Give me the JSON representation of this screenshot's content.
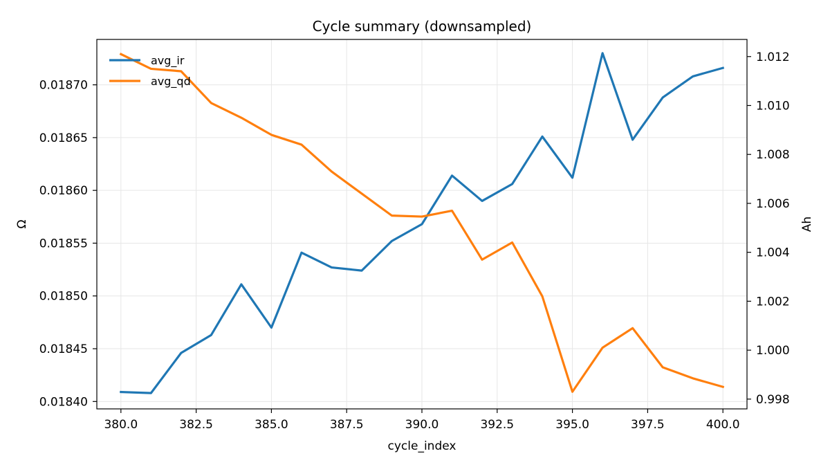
{
  "chart_data": {
    "type": "line",
    "title": "Cycle summary (downsampled)",
    "xlabel": "cycle_index",
    "ylabel_left": "Ω",
    "ylabel_right": "Ah",
    "x": [
      380,
      381,
      382,
      383,
      384,
      385,
      386,
      387,
      388,
      389,
      390,
      391,
      392,
      393,
      394,
      395,
      396,
      397,
      398,
      399,
      400
    ],
    "xlim": [
      379.2,
      400.8
    ],
    "xticks": [
      380.0,
      382.5,
      385.0,
      387.5,
      390.0,
      392.5,
      395.0,
      397.5,
      400.0
    ],
    "xtick_labels": [
      "380.0",
      "382.5",
      "385.0",
      "387.5",
      "390.0",
      "392.5",
      "395.0",
      "397.5",
      "400.0"
    ],
    "ylim_left": [
      0.018393,
      0.018743
    ],
    "yticks_left": [
      0.0184,
      0.01845,
      0.0185,
      0.01855,
      0.0186,
      0.01865,
      0.0187
    ],
    "ytick_labels_left": [
      "0.01840",
      "0.01845",
      "0.01850",
      "0.01855",
      "0.01860",
      "0.01865",
      "0.01870"
    ],
    "ylim_right": [
      0.9976,
      1.0127
    ],
    "yticks_right": [
      0.998,
      1.0,
      1.002,
      1.004,
      1.006,
      1.008,
      1.01,
      1.012
    ],
    "ytick_labels_right": [
      "0.998",
      "1.000",
      "1.002",
      "1.004",
      "1.006",
      "1.008",
      "1.010",
      "1.012"
    ],
    "grid": true,
    "legend_position": "top-left",
    "series": [
      {
        "name": "avg_ir",
        "axis": "left",
        "color": "#1f77b4",
        "values": [
          0.018409,
          0.018408,
          0.018446,
          0.018463,
          0.018511,
          0.01847,
          0.018541,
          0.018527,
          0.018524,
          0.018552,
          0.018568,
          0.018614,
          0.01859,
          0.018606,
          0.018651,
          0.018612,
          0.01873,
          0.018648,
          0.018688,
          0.018708,
          0.018716
        ]
      },
      {
        "name": "avg_qd",
        "axis": "right",
        "color": "#ff7f0e",
        "values": [
          1.0121,
          1.0115,
          1.0114,
          1.0101,
          1.0095,
          1.0088,
          1.0084,
          1.0073,
          1.0064,
          1.0055,
          1.00546,
          1.0057,
          1.0037,
          1.0044,
          1.0022,
          0.9983,
          1.0001,
          1.0009,
          0.9993,
          0.99885,
          0.9985
        ]
      }
    ]
  }
}
